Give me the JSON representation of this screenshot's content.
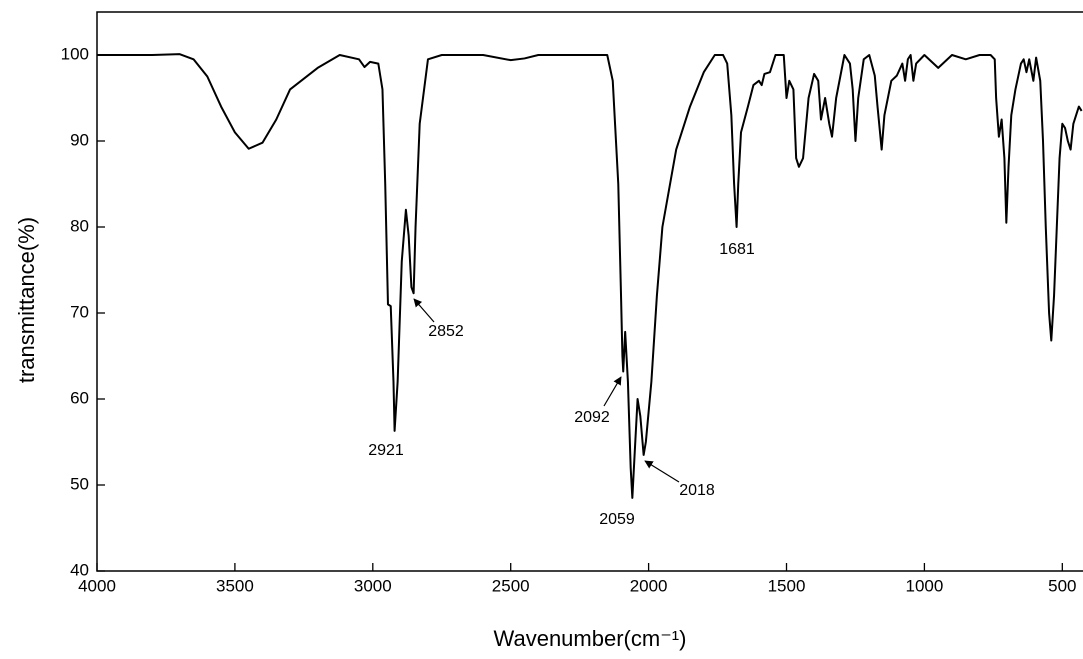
{
  "chart_data": {
    "type": "line",
    "x_label": "Wavenumber(cm⁻¹)",
    "y_label": "transmittance(%)",
    "color": "#000000",
    "xlim": [
      4000,
      425
    ],
    "ylim": [
      40,
      105
    ],
    "xticks": [
      4000,
      3500,
      3000,
      2500,
      2000,
      1500,
      1000,
      500
    ],
    "yticks": [
      40,
      50,
      60,
      70,
      80,
      90,
      100
    ],
    "annotations": [
      "2921",
      "2852",
      "1681",
      "2092",
      "2059",
      "2018"
    ],
    "x": [
      4000,
      3800,
      3700,
      3650,
      3600,
      3550,
      3500,
      3450,
      3400,
      3350,
      3300,
      3200,
      3120,
      3050,
      3030,
      3010,
      2980,
      2965,
      2955,
      2945,
      2935,
      2925,
      2921,
      2910,
      2895,
      2880,
      2870,
      2860,
      2852,
      2845,
      2830,
      2800,
      2750,
      2600,
      2500,
      2450,
      2400,
      2200,
      2150,
      2130,
      2110,
      2100,
      2095,
      2092,
      2085,
      2075,
      2065,
      2059,
      2050,
      2040,
      2030,
      2018,
      2010,
      1990,
      1970,
      1950,
      1900,
      1850,
      1800,
      1760,
      1730,
      1715,
      1700,
      1690,
      1681,
      1675,
      1665,
      1640,
      1620,
      1600,
      1590,
      1580,
      1560,
      1540,
      1510,
      1500,
      1490,
      1475,
      1465,
      1455,
      1440,
      1420,
      1400,
      1385,
      1375,
      1360,
      1345,
      1335,
      1320,
      1290,
      1270,
      1260,
      1250,
      1240,
      1220,
      1200,
      1180,
      1170,
      1155,
      1145,
      1120,
      1100,
      1080,
      1070,
      1060,
      1050,
      1040,
      1030,
      1000,
      950,
      900,
      850,
      800,
      760,
      745,
      740,
      730,
      720,
      710,
      703,
      695,
      685,
      670,
      650,
      640,
      630,
      620,
      605,
      595,
      580,
      570,
      560,
      548,
      540,
      530,
      520,
      510,
      500,
      490,
      480,
      470,
      460,
      450,
      440,
      430
    ],
    "values": [
      100,
      100,
      100.1,
      99.5,
      97.5,
      94,
      91,
      89.1,
      89.8,
      92.5,
      96,
      98.5,
      100,
      99.5,
      98.6,
      99.2,
      99,
      96,
      85,
      71,
      70.8,
      62,
      56.3,
      62,
      76,
      82,
      79,
      73,
      72.3,
      80,
      92,
      99.5,
      100,
      100,
      99.4,
      99.6,
      100,
      100,
      100,
      97,
      85,
      72,
      65,
      63.2,
      67.8,
      62,
      52,
      48.5,
      54,
      60,
      58,
      53.5,
      55,
      62,
      72,
      80,
      89,
      94,
      98,
      100,
      100,
      99,
      93,
      85,
      80,
      85,
      91,
      94,
      96.5,
      97,
      96.5,
      97.8,
      98,
      100,
      100,
      95,
      97,
      96,
      88,
      87,
      88,
      95,
      97.8,
      97,
      92.5,
      95,
      92,
      90.5,
      95,
      100,
      99,
      96,
      90,
      95,
      99.5,
      100,
      97.6,
      94,
      89,
      93,
      97,
      97.6,
      99,
      97,
      99.5,
      100,
      97,
      99,
      100,
      98.5,
      100,
      99.5,
      100,
      100,
      99.5,
      95,
      90.5,
      92.5,
      88,
      80.5,
      87,
      93,
      96,
      99,
      99.5,
      98,
      99.5,
      97,
      99.7,
      97,
      90,
      80,
      70,
      66.8,
      72,
      80,
      88,
      92,
      91.5,
      90,
      89,
      92,
      93,
      94,
      93.5
    ]
  }
}
